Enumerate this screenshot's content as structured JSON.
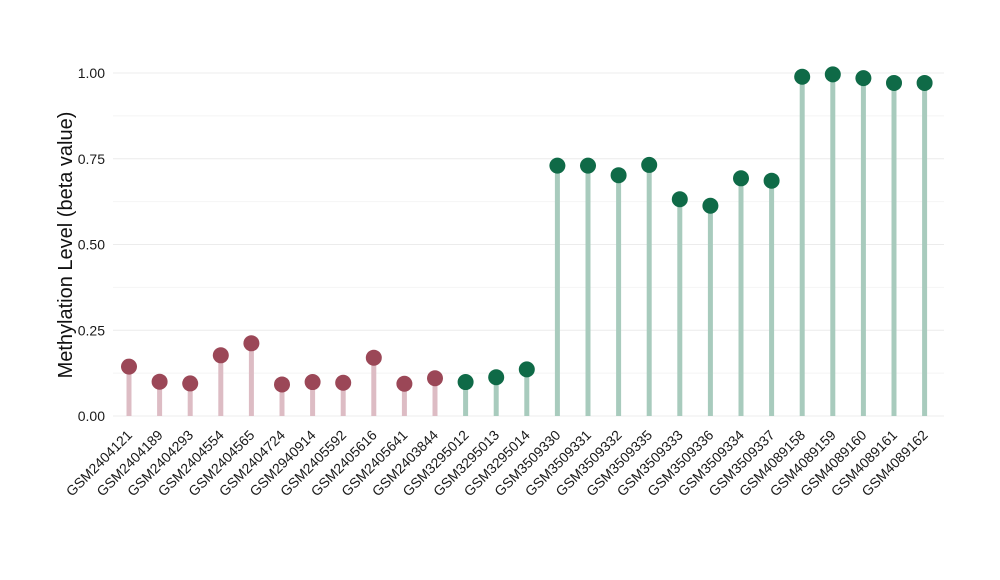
{
  "chart_data": {
    "type": "lollipop",
    "ylabel": "Methylation Level (beta value)",
    "xlabel": "",
    "title": "",
    "ylim": [
      0,
      1.0
    ],
    "yticks": [
      "0.00",
      "0.25",
      "0.50",
      "0.75",
      "1.00"
    ],
    "grid": true,
    "legend": "none",
    "colors": {
      "group1_point": "#9b4757",
      "group1_stem": "#ddbcc4",
      "group2_point": "#0f6a47",
      "group2_stem": "#a8cbbd",
      "grid": "#ececec"
    },
    "categories": [
      "GSM2404121",
      "GSM2404189",
      "GSM2404293",
      "GSM2404554",
      "GSM2404565",
      "GSM2404724",
      "GSM2940914",
      "GSM2405592",
      "GSM2405616",
      "GSM2405641",
      "GSM2403844",
      "GSM3295012",
      "GSM3295013",
      "GSM3295014",
      "GSM3509330",
      "GSM3509331",
      "GSM3509332",
      "GSM3509335",
      "GSM3509333",
      "GSM3509336",
      "GSM3509334",
      "GSM3509337",
      "GSM4089158",
      "GSM4089159",
      "GSM4089160",
      "GSM4089161",
      "GSM4089162"
    ],
    "values": [
      0.144,
      0.1,
      0.095,
      0.177,
      0.212,
      0.092,
      0.099,
      0.097,
      0.17,
      0.094,
      0.11,
      0.099,
      0.113,
      0.136,
      0.73,
      0.73,
      0.702,
      0.732,
      0.632,
      0.613,
      0.693,
      0.686,
      0.989,
      0.996,
      0.985,
      0.971,
      0.971
    ],
    "groups": [
      1,
      1,
      1,
      1,
      1,
      1,
      1,
      1,
      1,
      1,
      1,
      2,
      2,
      2,
      2,
      2,
      2,
      2,
      2,
      2,
      2,
      2,
      2,
      2,
      2,
      2,
      2
    ]
  }
}
